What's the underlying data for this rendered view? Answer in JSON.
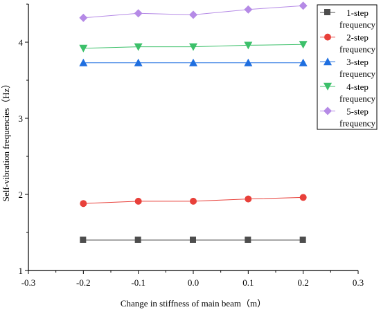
{
  "chart_data": {
    "type": "line",
    "title": "",
    "xlabel": "Change in stiffness of main beam（m）",
    "ylabel": "Self-vibration frequencies（Hz）",
    "xlim": [
      -0.3,
      0.3
    ],
    "ylim": [
      1,
      4.5
    ],
    "x_ticks": [
      -0.3,
      -0.2,
      -0.1,
      0.0,
      0.1,
      0.2,
      0.3
    ],
    "x_tick_labels": [
      "-0.3",
      "-0.2",
      "-0.1",
      "0.0",
      "0.1",
      "0.2",
      "0.3"
    ],
    "y_ticks": [
      1,
      2,
      3,
      4
    ],
    "y_tick_labels": [
      "1",
      "2",
      "3",
      "4"
    ],
    "grid": false,
    "legend_position": "top-right",
    "x": [
      -0.2,
      -0.1,
      0.0,
      0.1,
      0.2
    ],
    "series": [
      {
        "name": "1-step frequency",
        "legend_lines": [
          "1-step",
          "frequency"
        ],
        "color": "#4d4d4d",
        "marker": "square",
        "values": [
          1.4,
          1.4,
          1.4,
          1.4,
          1.4
        ]
      },
      {
        "name": "2-step frequency",
        "legend_lines": [
          "2-step",
          "frequency"
        ],
        "color": "#e8403a",
        "marker": "circle",
        "values": [
          1.88,
          1.91,
          1.91,
          1.94,
          1.96
        ]
      },
      {
        "name": "3-step frequency",
        "legend_lines": [
          "3-step",
          "frequency"
        ],
        "color": "#1f6fe0",
        "marker": "triangle-up",
        "values": [
          3.73,
          3.73,
          3.73,
          3.73,
          3.73
        ]
      },
      {
        "name": "4-step frequency",
        "legend_lines": [
          "4-step",
          "frequency"
        ],
        "color": "#3cc06a",
        "marker": "triangle-down",
        "values": [
          3.92,
          3.94,
          3.94,
          3.96,
          3.97
        ]
      },
      {
        "name": "5-step frequency",
        "legend_lines": [
          "5-step",
          "frequency"
        ],
        "color": "#b58ae6",
        "marker": "diamond",
        "values": [
          4.32,
          4.38,
          4.36,
          4.43,
          4.48
        ]
      }
    ]
  }
}
